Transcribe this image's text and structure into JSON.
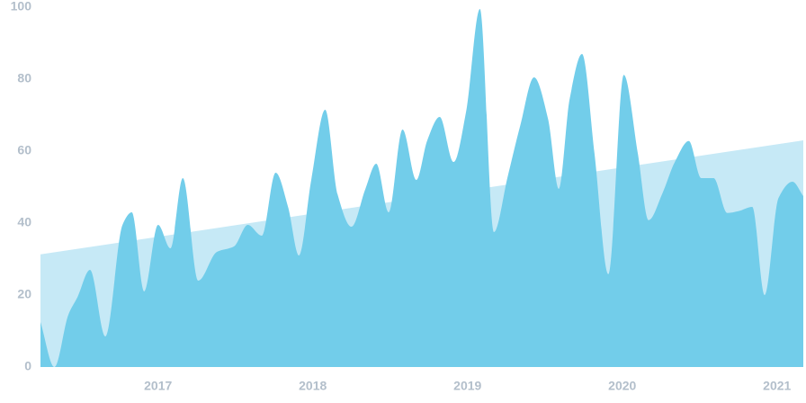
{
  "chart_data": {
    "type": "area",
    "xlim": [
      2016.24,
      2021.17
    ],
    "xticks": [
      2017,
      2018,
      2019,
      2020,
      2021
    ],
    "ylim": [
      0,
      100
    ],
    "yticks": [
      0,
      20,
      40,
      60,
      80,
      100
    ],
    "grid": false,
    "series": [
      {
        "color": "#c6e9f6",
        "x": [
          2016.24,
          2021.17
        ],
        "values": [
          31.3,
          63
        ]
      },
      {
        "color": "#72cdea",
        "x": [
          2016.24,
          2016.33,
          2016.42,
          2016.48,
          2016.56,
          2016.66,
          2016.77,
          2016.83,
          2016.91,
          2017.0,
          2017.08,
          2017.16,
          2017.26,
          2017.38,
          2017.49,
          2017.58,
          2017.67,
          2017.76,
          2017.84,
          2017.91,
          2017.99,
          2018.08,
          2018.16,
          2018.25,
          2018.34,
          2018.41,
          2018.49,
          2018.58,
          2018.67,
          2018.74,
          2018.82,
          2018.91,
          2018.99,
          2019.08,
          2019.17,
          2019.26,
          2019.34,
          2019.43,
          2019.52,
          2019.59,
          2019.66,
          2019.74,
          2019.82,
          2019.91,
          2020.01,
          2020.1,
          2020.17,
          2020.26,
          2020.34,
          2020.43,
          2020.51,
          2020.59,
          2020.68,
          2020.75,
          2020.84,
          2020.92,
          2021.01,
          2021.1,
          2021.17
        ],
        "values": [
          12.5,
          0,
          14.5,
          19.5,
          27,
          8.5,
          39.5,
          43,
          21,
          39.5,
          33,
          52.5,
          24,
          32,
          33.5,
          39.5,
          36.5,
          54,
          44.5,
          31,
          52,
          71.5,
          48,
          39,
          49.5,
          56.5,
          43,
          66,
          52,
          63,
          69.5,
          57,
          70.8,
          99.5,
          37.5,
          53,
          67,
          80.5,
          69,
          49.5,
          74.5,
          87,
          59.5,
          25.8,
          81.2,
          59.5,
          40.8,
          48.3,
          57,
          62.8,
          52.5,
          52.5,
          42.8,
          43.3,
          44.5,
          20,
          47,
          51.5,
          47.5
        ]
      }
    ]
  }
}
